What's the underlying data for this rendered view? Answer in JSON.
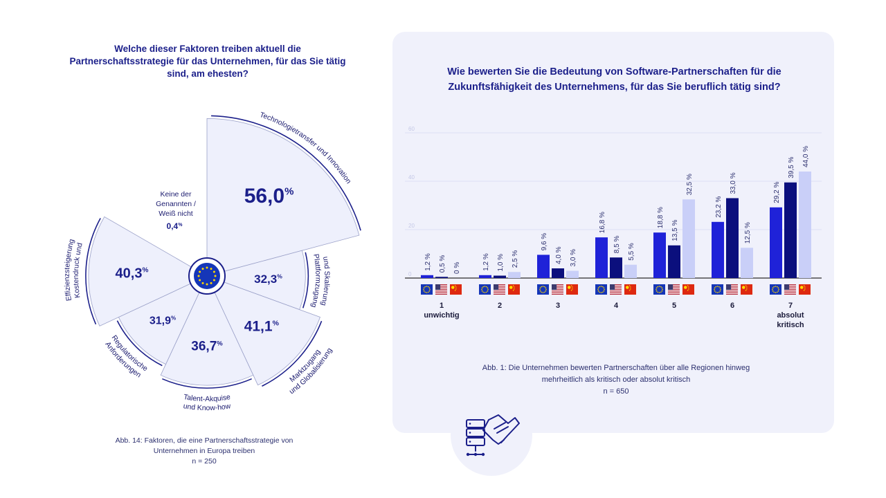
{
  "left_chart": {
    "title": "Welche dieser Faktoren treiben aktuell die Partnerschaftsstrategie für das Unternehmen, für das Sie tätig sind, am ehesten?",
    "caption_line1": "Abb. 14: Faktoren, die eine Partnerschaftsstrategie von",
    "caption_line2": "Unternehmen in Europa treiben",
    "caption_n": "n = 250",
    "percent_sign": "%",
    "none_label": [
      "Keine der",
      "Genannten /",
      "Weiß nicht"
    ],
    "none_value": "0,4",
    "center_icon": "eu-flag-icon"
  },
  "right_chart": {
    "title_line1": "Wie bewerten Sie die Bedeutung von Software-Partnerschaften für die",
    "title_line2": "Zukunftsfähigkeit des Unternehmens, für das Sie beruflich tätig sind?",
    "caption_line1": "Abb. 1: Die Unternehmen bewerten Partnerschaften über alle Regionen hinweg",
    "caption_line2": "mehrheitlich als kritisch oder absolut kritisch",
    "caption_n": "n = 650",
    "bottom_icon": "server-handshake-icon"
  },
  "colors": {
    "navy": "#1b1f8a",
    "eu": "#1f22d8",
    "us": "#0b0f7d",
    "cn": "#c9cff8",
    "sector_fill": "#eef0fc",
    "panel": "#f0f1fb"
  },
  "chart_data": [
    {
      "type": "polar-area",
      "categories": [
        "Technologietransfer und Innovation",
        "Plattformzugang und Skalierung",
        "Marktzugang und Globalisierung",
        "Talent-Akquise und Know-how",
        "Regulatorische Anforderungen",
        "Kostendruck und Effizienzsteigerung",
        "Keine der Genannten / Weiß nicht"
      ],
      "values": [
        56.0,
        32.3,
        41.1,
        36.7,
        31.9,
        40.3,
        0.4
      ],
      "value_labels": [
        "56,0",
        "32,3",
        "41,1",
        "36,7",
        "31,9",
        "40,3",
        "0,4"
      ],
      "unit": "%"
    },
    {
      "type": "bar",
      "categories": [
        "1",
        "2",
        "3",
        "4",
        "5",
        "6",
        "7"
      ],
      "category_labels": [
        [
          "1",
          "unwichtig"
        ],
        [
          "2"
        ],
        [
          "3"
        ],
        [
          "4"
        ],
        [
          "5"
        ],
        [
          "6"
        ],
        [
          "7",
          "absolut",
          "kritisch"
        ]
      ],
      "series": [
        {
          "values": [
            1.2,
            1.2,
            9.6,
            16.8,
            18.8,
            23.2,
            29.2
          ],
          "labels": [
            "1,2 %",
            "1,2 %",
            "9,6 %",
            "16,8 %",
            "18,8 %",
            "23,2 %",
            "29,2 %"
          ],
          "icon": "eu-flag-icon"
        },
        {
          "values": [
            0.5,
            1.0,
            4.0,
            8.5,
            13.5,
            33.0,
            39.5
          ],
          "labels": [
            "0,5 %",
            "1,0 %",
            "4,0 %",
            "8,5 %",
            "13,5 %",
            "33,0 %",
            "39,5 %"
          ],
          "icon": "us-flag-icon"
        },
        {
          "values": [
            0,
            2.5,
            3.0,
            5.5,
            32.5,
            12.5,
            44.0
          ],
          "labels": [
            "0 %",
            "2,5 %",
            "3,0 %",
            "5,5 %",
            "32,5 %",
            "12,5 %",
            "44,0 %"
          ],
          "icon": "china-flag-icon"
        }
      ],
      "yticks": [
        "0",
        "20",
        "40",
        "60"
      ],
      "ylim": [
        0,
        60
      ],
      "grid": true
    }
  ]
}
